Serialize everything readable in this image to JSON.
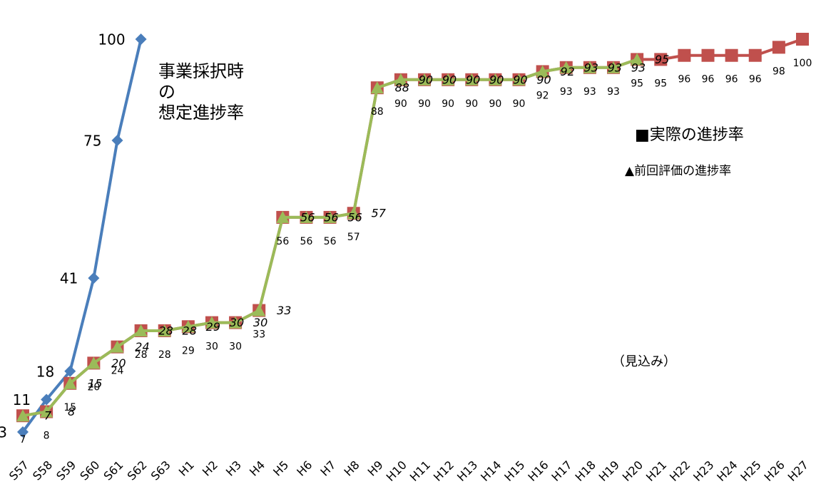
{
  "chart_data": {
    "type": "line",
    "categories": [
      "S57",
      "S58",
      "S59",
      "S60",
      "S61",
      "S62",
      "S63",
      "H1",
      "H2",
      "H3",
      "H4",
      "H5",
      "H6",
      "H7",
      "H8",
      "H9",
      "H10",
      "H11",
      "H12",
      "H13",
      "H14",
      "H15",
      "H16",
      "H17",
      "H18",
      "H19",
      "H20",
      "H21",
      "H22",
      "H23",
      "H24",
      "H25",
      "H26",
      "H27"
    ],
    "series": [
      {
        "name": "事業採択時\nの\n想定進捗率",
        "color": "#4a7ebb",
        "marker": "diamond",
        "values": [
          3,
          11,
          18,
          41,
          75,
          100,
          null,
          null,
          null,
          null,
          null,
          null,
          null,
          null,
          null,
          null,
          null,
          null,
          null,
          null,
          null,
          null,
          null,
          null,
          null,
          null,
          null,
          null,
          null,
          null,
          null,
          null,
          null,
          null
        ]
      },
      {
        "name": "■実際の進捗率",
        "color": "#c0504d",
        "marker": "square",
        "values": [
          7,
          8,
          15,
          20,
          24,
          28,
          28,
          29,
          30,
          30,
          33,
          56,
          56,
          56,
          57,
          88,
          90,
          90,
          90,
          90,
          90,
          90,
          92,
          93,
          93,
          93,
          95,
          95,
          96,
          96,
          96,
          96,
          98,
          100
        ]
      },
      {
        "name": "▲前回評価の進捗率",
        "color": "#9bbb59",
        "marker": "triangle",
        "values": [
          7,
          8,
          15,
          20,
          24,
          28,
          28,
          29,
          30,
          30,
          33,
          56,
          56,
          56,
          57,
          88,
          90,
          90,
          90,
          90,
          90,
          90,
          92,
          93,
          93,
          93,
          95,
          null,
          null,
          null,
          null,
          null,
          null,
          null
        ]
      }
    ],
    "annotations": [
      "（見込み）"
    ],
    "ylim": [
      0,
      100
    ]
  }
}
